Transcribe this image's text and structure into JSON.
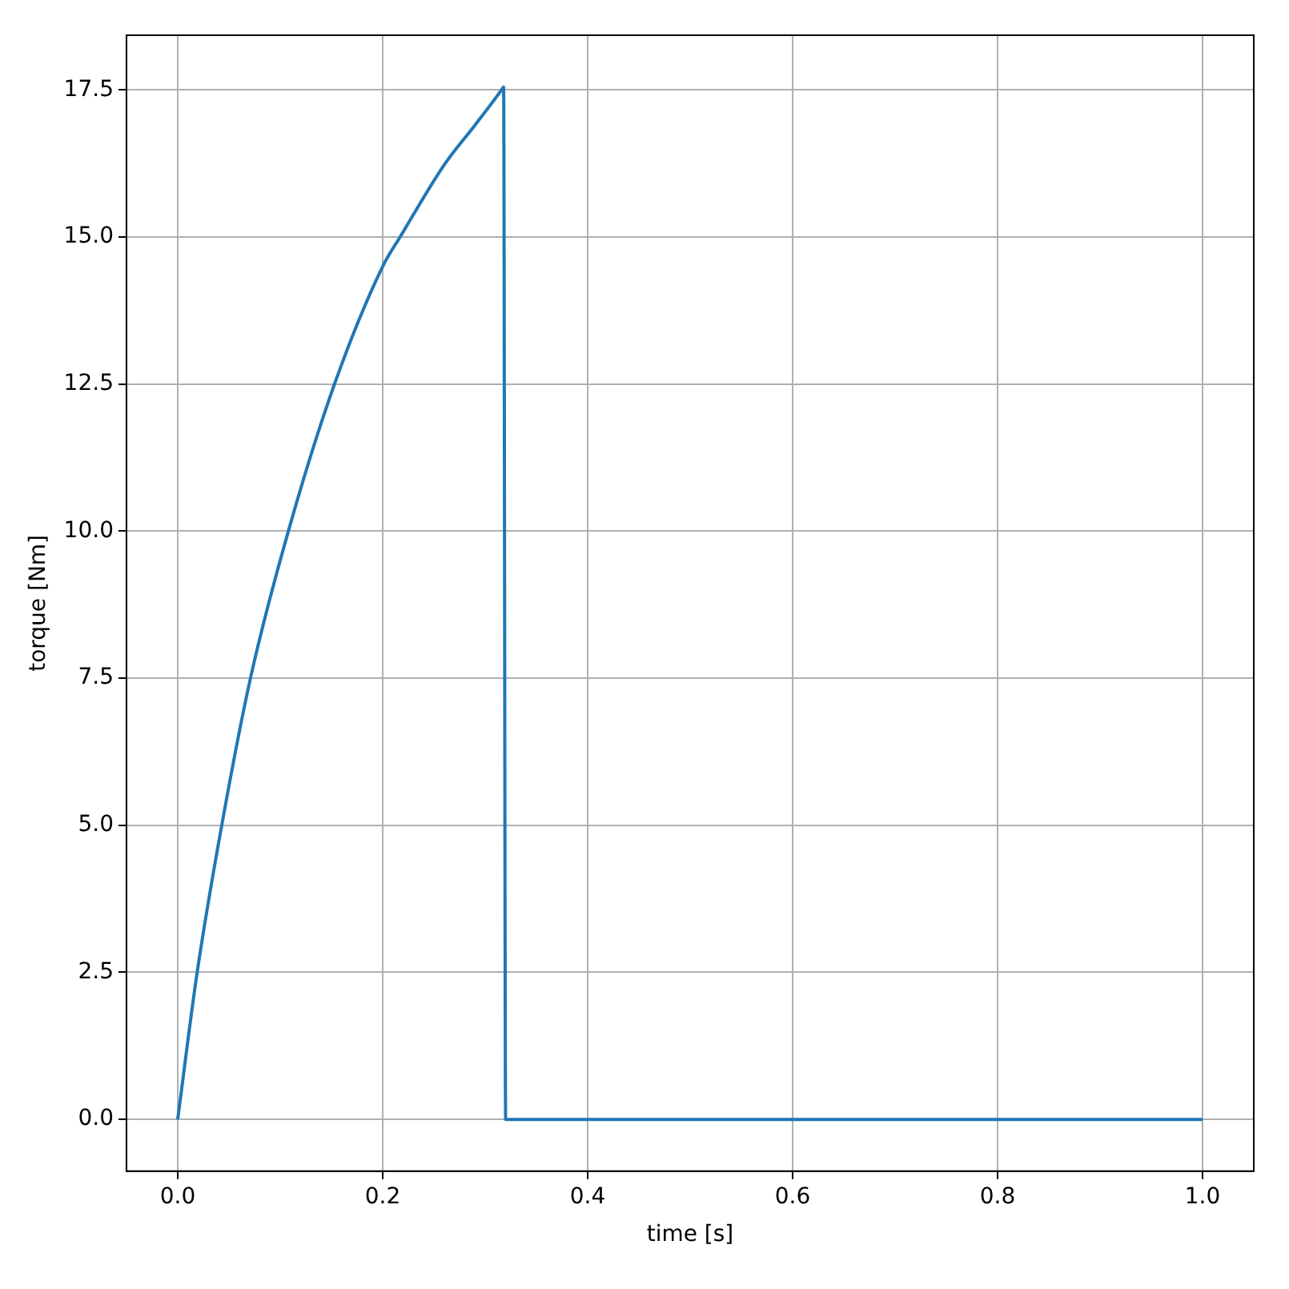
{
  "chart_data": {
    "type": "line",
    "xlabel": "time [s]",
    "ylabel": "torque [Nm]",
    "x": [
      0,
      0.019,
      0.043,
      0.071,
      0.108,
      0.153,
      0.2,
      0.217,
      0.261,
      0.29,
      0.316,
      0.318,
      0.32,
      1.0
    ],
    "series": [
      {
        "color": "#1f77b4",
        "values": [
          0,
          2.5,
          5,
          7.5,
          10,
          12.5,
          14.5,
          15,
          16.25,
          16.9,
          17.5,
          17.55,
          0,
          0
        ]
      }
    ],
    "xlim": [
      -0.05,
      1.05
    ],
    "xticks": [
      {
        "value": 0,
        "label": "0.0"
      },
      {
        "value": 0.2,
        "label": "0.2"
      },
      {
        "value": 0.4,
        "label": "0.4"
      },
      {
        "value": 0.6,
        "label": "0.6"
      },
      {
        "value": 0.8,
        "label": "0.8"
      },
      {
        "value": 1,
        "label": "1.0"
      }
    ],
    "ylim": [
      -0.88,
      18.43
    ],
    "yticks": [
      {
        "value": 0,
        "label": "0.0"
      },
      {
        "value": 2.5,
        "label": "2.5"
      },
      {
        "value": 5,
        "label": "5.0"
      },
      {
        "value": 7.5,
        "label": "7.5"
      },
      {
        "value": 10,
        "label": "10.0"
      },
      {
        "value": 12.5,
        "label": "12.5"
      },
      {
        "value": 15,
        "label": "15.0"
      },
      {
        "value": 17.5,
        "label": "17.5"
      }
    ],
    "grid": true,
    "legend": false,
    "marker": "none",
    "line_style": "solid"
  }
}
